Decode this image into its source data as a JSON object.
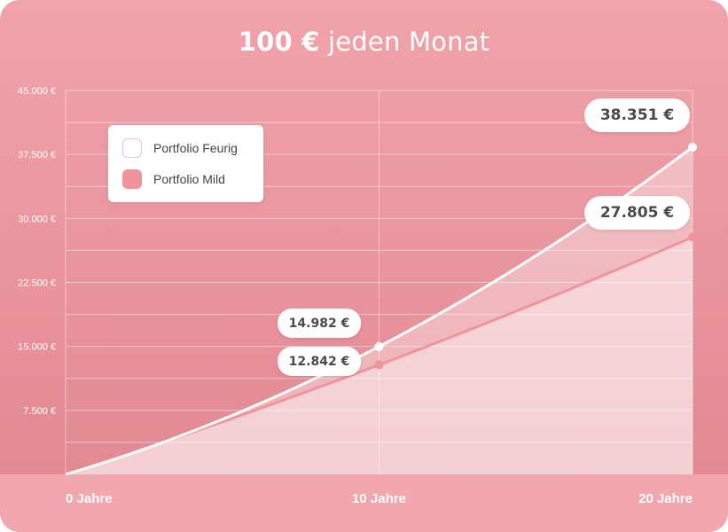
{
  "chart_data": {
    "type": "area",
    "title_bold": "100 €",
    "title_rest": "jeden Monat",
    "x": [
      0,
      10,
      20
    ],
    "x_tick_labels": [
      "0 Jahre",
      "10 Jahre",
      "20 Jahre"
    ],
    "xlim": [
      0,
      20
    ],
    "ylim": [
      0,
      45000
    ],
    "y_ticks": [
      7500,
      15000,
      22500,
      30000,
      37500,
      45000
    ],
    "y_tick_labels": [
      "7.500 €",
      "15.000 €",
      "22.500 €",
      "30.000 €",
      "37.500 €",
      "45.000 €"
    ],
    "grid": true,
    "legend_placement": "top-left",
    "series": [
      {
        "name": "Portfolio Feurig",
        "color": "#ffffff",
        "start": 0,
        "values": [
          0,
          14982,
          38351
        ],
        "labels": [
          "",
          "14.982 €",
          "38.351 €"
        ]
      },
      {
        "name": "Portfolio Mild",
        "color": "#f0939b",
        "start": 0,
        "values": [
          0,
          12842,
          27805
        ],
        "labels": [
          "",
          "12.842 €",
          "27.805 €"
        ]
      }
    ]
  },
  "colors": {
    "background_top": "#f1a3aa",
    "background_bottom": "#e0868f",
    "feurig_line": "#ffffff",
    "mild_line": "#f0939b"
  }
}
